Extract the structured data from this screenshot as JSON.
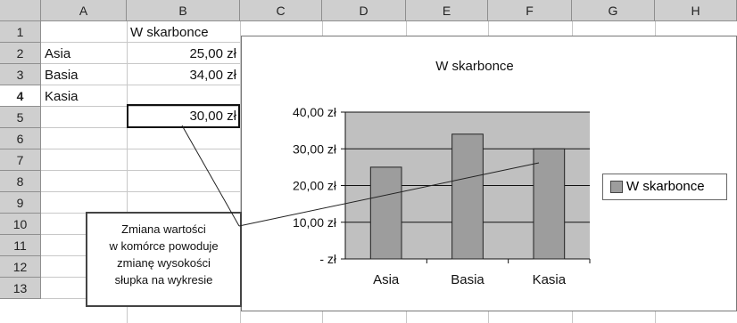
{
  "columns": [
    "A",
    "B",
    "C",
    "D",
    "E",
    "F",
    "G",
    "H"
  ],
  "rows": [
    "1",
    "2",
    "3",
    "4",
    "5",
    "6",
    "7",
    "8",
    "9",
    "10",
    "11",
    "12",
    "13"
  ],
  "active_row": "4",
  "cells": {
    "B1": "W skarbonce",
    "A2": "Asia",
    "B2": "25,00 zł",
    "A3": "Basia",
    "B3": "34,00 zł",
    "A4": "Kasia",
    "B4": "30,00 zł"
  },
  "callout_lines": [
    "Zmiana wartości",
    "w komórce powoduje",
    "zmianę wysokości",
    "słupka na wykresie"
  ],
  "colors": {
    "bar": "#9d9d9d",
    "plot_bg": "#c0c0c0",
    "header_bg": "#cfcfcf"
  },
  "chart_data": {
    "type": "bar",
    "title": "W skarbonce",
    "categories": [
      "Asia",
      "Basia",
      "Kasia"
    ],
    "series": [
      {
        "name": "W skarbonce",
        "values": [
          25,
          34,
          30
        ]
      }
    ],
    "ylim": [
      0,
      40
    ],
    "y_ticks": [
      0,
      10,
      20,
      30,
      40
    ],
    "y_tick_labels": [
      "-   zł",
      "10,00 zł",
      "20,00 zł",
      "30,00 zł",
      "40,00 zł"
    ],
    "grid": true,
    "legend": "right"
  }
}
